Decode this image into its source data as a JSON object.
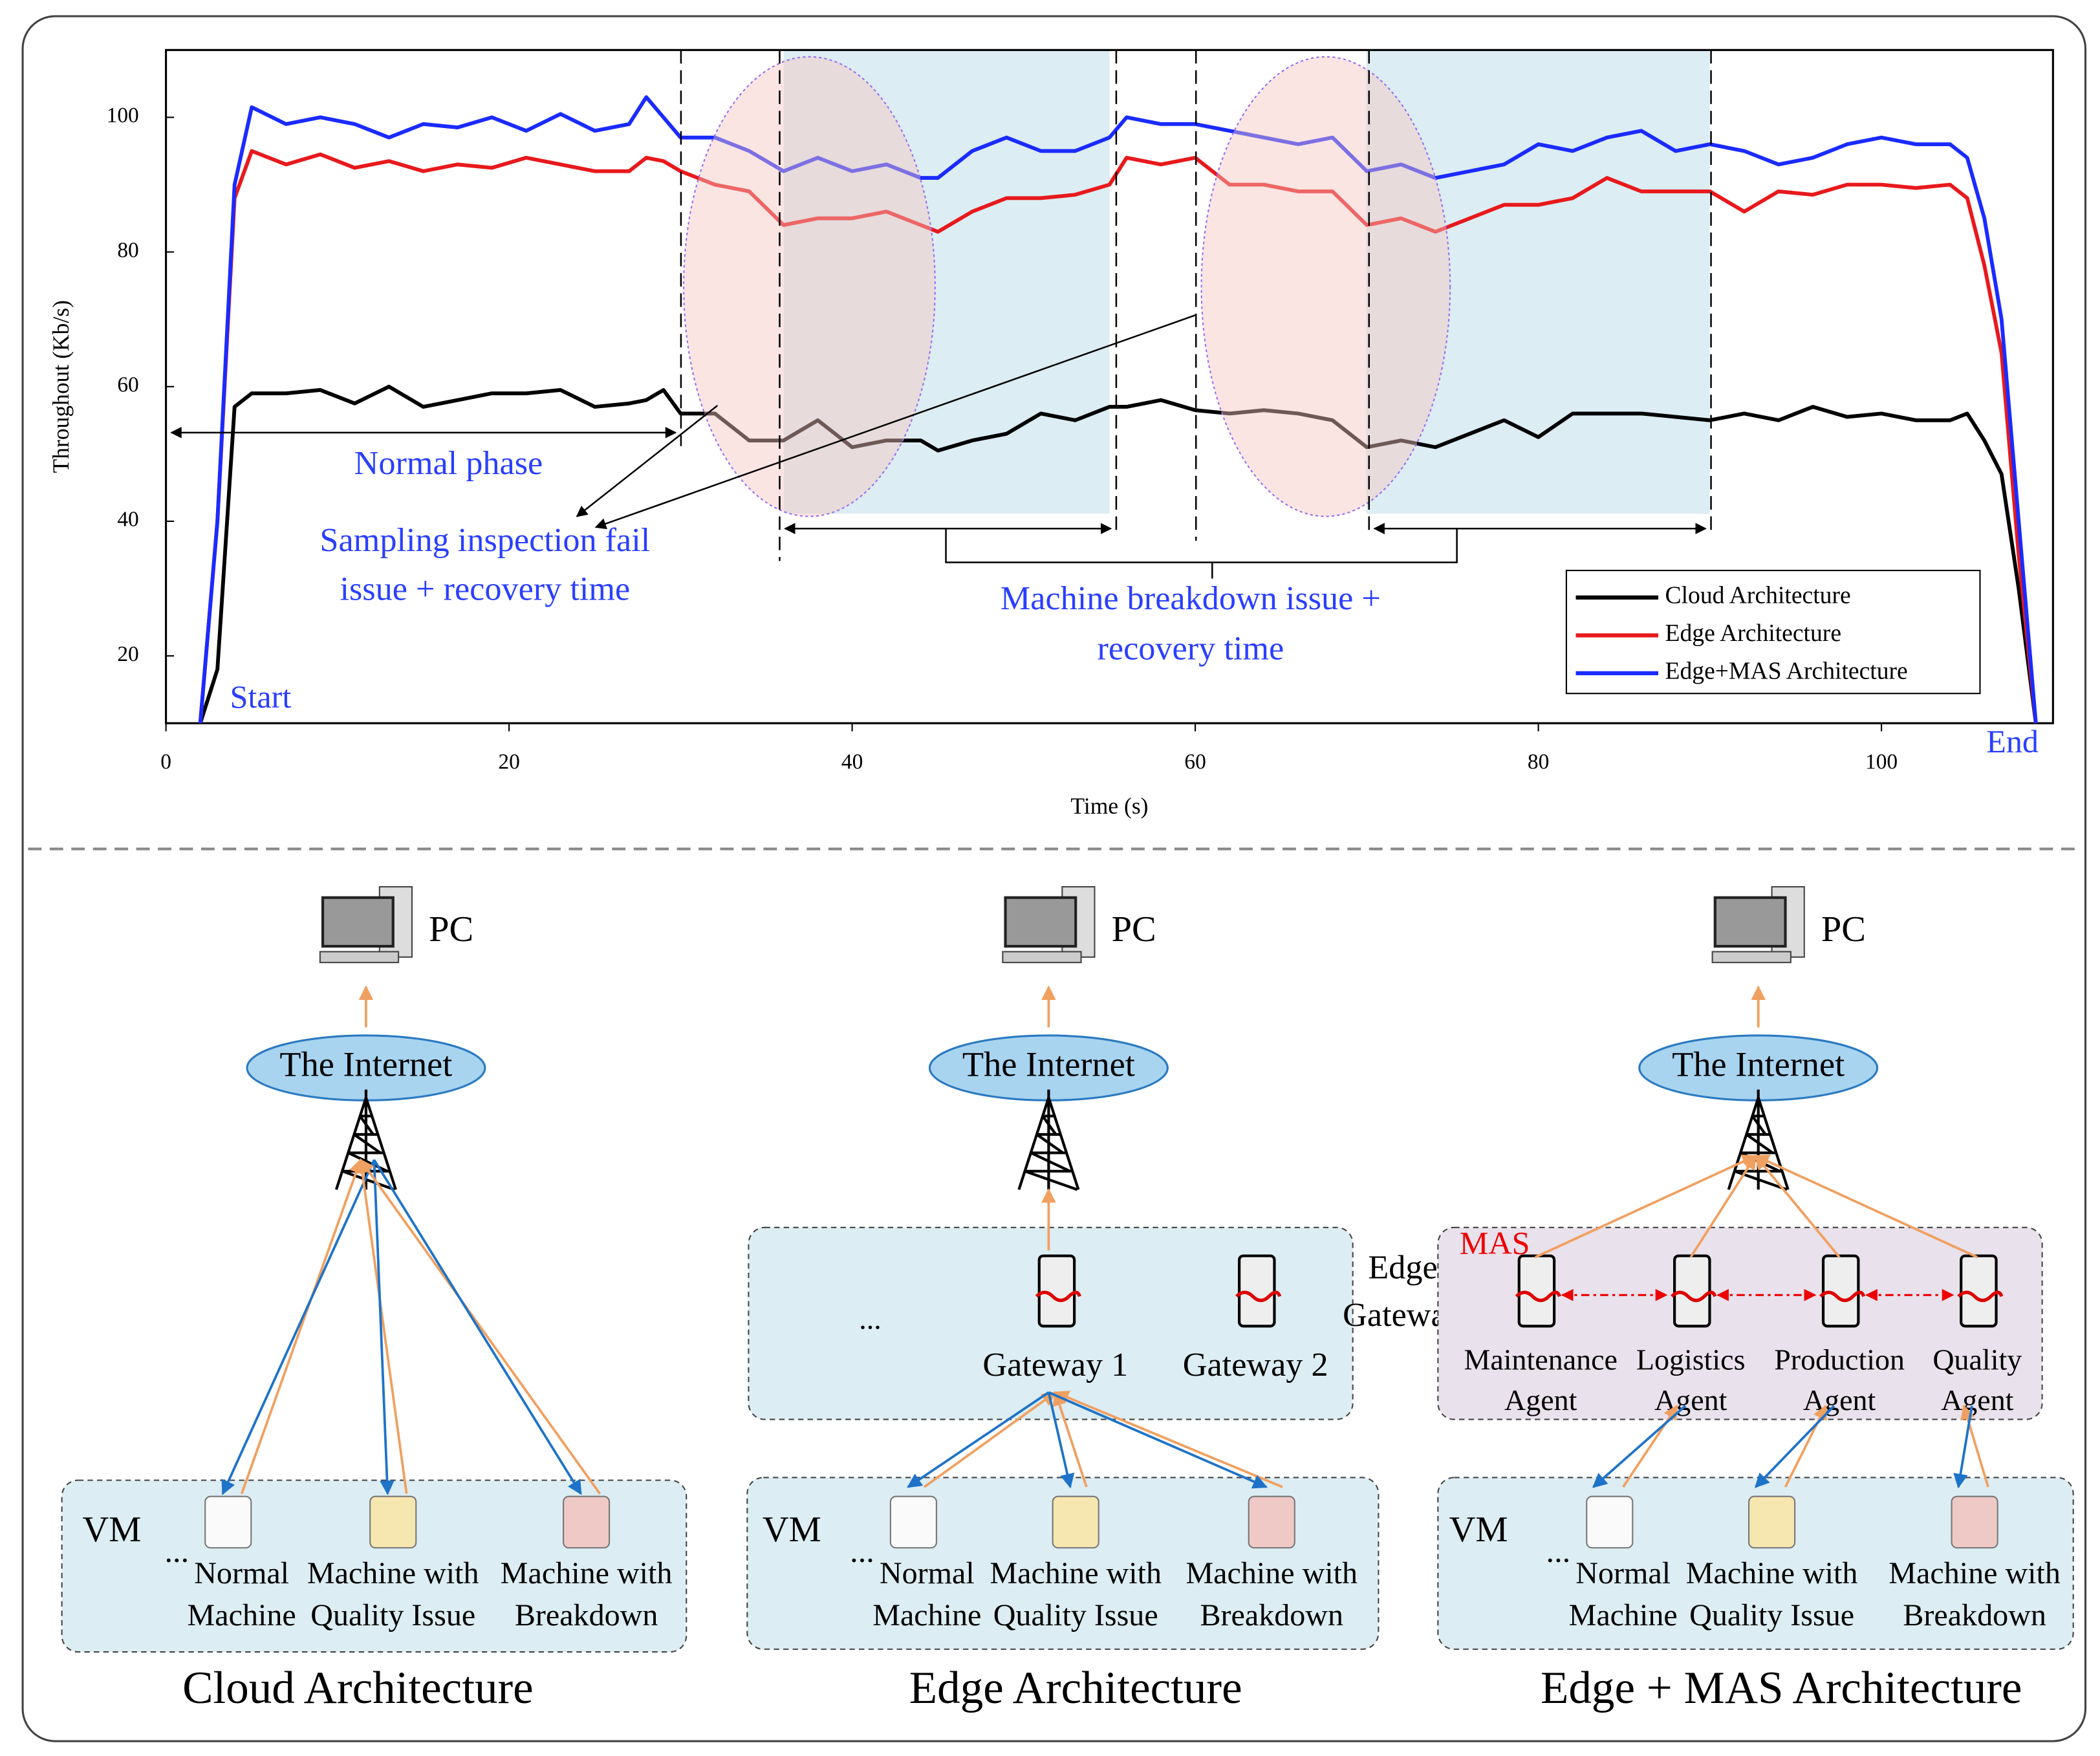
{
  "chart_data": {
    "type": "line",
    "xlabel": "Time (s)",
    "ylabel": "Throughout (Kb/s)",
    "xlim": [
      0,
      110
    ],
    "ylim": [
      10,
      110
    ],
    "xticks": [
      0,
      20,
      40,
      60,
      80,
      100
    ],
    "yticks": [
      20,
      40,
      60,
      80,
      100
    ],
    "grid": false,
    "legend": "lower right",
    "x": [
      2,
      3,
      4,
      5,
      7,
      9,
      11,
      13,
      15,
      17,
      19,
      21,
      23,
      25,
      27,
      28,
      29,
      30,
      32,
      34,
      36,
      38,
      40,
      42,
      44,
      45,
      47,
      49,
      51,
      53,
      55,
      56,
      58,
      60,
      62,
      64,
      66,
      68,
      70,
      72,
      74,
      76,
      78,
      80,
      82,
      84,
      86,
      88,
      90,
      92,
      94,
      96,
      98,
      100,
      102,
      104,
      105,
      106,
      107,
      108,
      109
    ],
    "series": [
      {
        "name": "Cloud Architecture",
        "color": "#000000",
        "values": [
          10,
          18,
          57,
          59,
          59,
          59.5,
          57.5,
          60,
          57,
          58,
          59,
          59,
          59.5,
          57,
          57.5,
          58,
          59.5,
          56,
          56,
          52,
          52,
          55,
          51,
          52,
          52,
          50.5,
          52,
          53,
          56,
          55,
          57,
          57,
          58,
          56.5,
          56,
          56.5,
          56,
          55,
          51,
          52,
          51,
          53,
          55,
          52.5,
          56,
          56,
          56,
          55.5,
          55,
          56,
          55,
          57,
          55.5,
          56,
          55,
          55,
          56,
          52,
          47,
          30,
          10
        ]
      },
      {
        "name": "Edge Architecture",
        "color": "#e8191c",
        "values": [
          10,
          40,
          88,
          95,
          93,
          94.5,
          92.5,
          93.5,
          92,
          93,
          92.5,
          94,
          93,
          92,
          92,
          94,
          93.5,
          92,
          90,
          89,
          84,
          85,
          85,
          86,
          84,
          83,
          86,
          88,
          88,
          88.5,
          90,
          94,
          93,
          94,
          90,
          90,
          89,
          89,
          84,
          85,
          83,
          85,
          87,
          87,
          88,
          91,
          89,
          89,
          89,
          86,
          89,
          88.5,
          90,
          90,
          89.5,
          90,
          88,
          78,
          65,
          35,
          10
        ]
      },
      {
        "name": "Edge+MAS Architecture",
        "color": "#1a2bff",
        "values": [
          10,
          40,
          90,
          101.5,
          99,
          100,
          99,
          97,
          99,
          98.5,
          100,
          98,
          100.5,
          98,
          99,
          103,
          100,
          97,
          97,
          95,
          92,
          94,
          92,
          93,
          91,
          91,
          95,
          97,
          95,
          95,
          97,
          100,
          99,
          99,
          98,
          97,
          96,
          97,
          92,
          93,
          91,
          92,
          93,
          96,
          95,
          97,
          98,
          95,
          96,
          95,
          93,
          94,
          96,
          97,
          96,
          96,
          94,
          85,
          70,
          40,
          10
        ]
      }
    ],
    "annotations": {
      "normal": "Normal phase",
      "sampling": [
        "Sampling inspection fail",
        "issue + recovery time"
      ],
      "breakdown": [
        "Machine breakdown issue +",
        "recovery time"
      ],
      "start": "Start",
      "end": "End"
    }
  },
  "diagrams": [
    {
      "title": "Cloud Architecture",
      "pc": "PC",
      "internet": "The Internet",
      "vm": "VM",
      "ellipsis": "...",
      "machines": [
        [
          "Normal",
          "Machine"
        ],
        [
          "Machine with",
          "Quality Issue"
        ],
        [
          "Machine with",
          "Breakdown"
        ]
      ]
    },
    {
      "title": "Edge Architecture",
      "pc": "PC",
      "internet": "The Internet",
      "vm": "VM",
      "ellipsis": "...",
      "gateway_group": [
        "Edge",
        "Gateway"
      ],
      "gateways": [
        "Gateway 1",
        "Gateway 2"
      ],
      "gateway_ellipsis": "...",
      "machines": [
        [
          "Normal",
          "Machine"
        ],
        [
          "Machine with",
          "Quality Issue"
        ],
        [
          "Machine with",
          "Breakdown"
        ]
      ]
    },
    {
      "title": "Edge + MAS Architecture",
      "pc": "PC",
      "internet": "The Internet",
      "vm": "VM",
      "ellipsis": "...",
      "mas": "MAS",
      "agents": [
        [
          "Maintenance",
          "Agent"
        ],
        [
          "Logistics",
          "Agent"
        ],
        [
          "Production",
          "Agent"
        ],
        [
          "Quality",
          "Agent"
        ]
      ],
      "machines": [
        [
          "Normal",
          "Machine"
        ],
        [
          "Machine with",
          "Quality Issue"
        ],
        [
          "Machine with",
          "Breakdown"
        ]
      ]
    }
  ]
}
